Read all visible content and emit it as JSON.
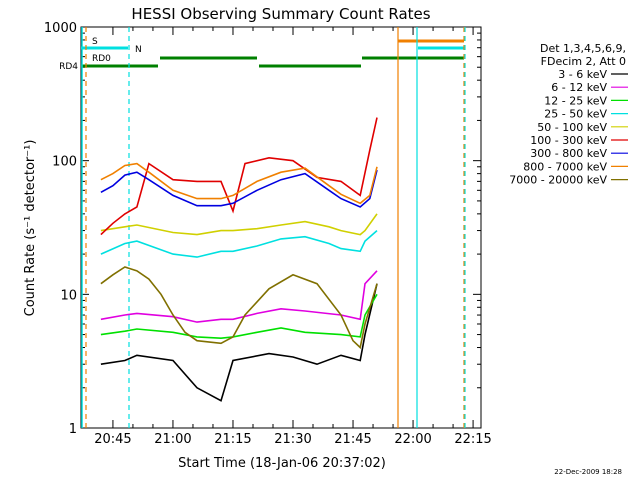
{
  "chart_data": {
    "type": "line",
    "title": "HESSI Observing Summary Count Rates",
    "xlabel": "Start Time (18-Jan-06 20:37:02)",
    "ylabel": "Count Rate (s⁻¹ detector⁻¹)",
    "y_scale": "log",
    "ylim": [
      1,
      1000
    ],
    "xlim_minutes": [
      20.617,
      22.283
    ],
    "grid": false,
    "legend_position": "right",
    "x_ticks": [
      "20:45",
      "21:00",
      "21:15",
      "21:30",
      "21:45",
      "22:00",
      "22:15"
    ],
    "y_ticks": [
      "1",
      "10",
      "100",
      "1000"
    ],
    "legend_header": [
      "Det 1,3,4,5,6,9,",
      "FDecim 2, Att 0"
    ],
    "footer_date": "22-Dec-2009 18:28",
    "flags": {
      "s_label": "S",
      "n_label": "N",
      "rd0_label": "RD0",
      "rd4_label": "RD4"
    },
    "series": [
      {
        "name": "3 - 6 keV",
        "color": "#000000",
        "x": [
          20.7,
          20.8,
          20.85,
          21.0,
          21.1,
          21.2,
          21.25,
          21.4,
          21.5,
          21.6,
          21.7,
          21.78,
          21.8,
          21.85
        ],
        "y": [
          3.0,
          3.2,
          3.5,
          3.2,
          2.0,
          1.6,
          3.2,
          3.6,
          3.4,
          3.0,
          3.5,
          3.2,
          5.0,
          12.0
        ]
      },
      {
        "name": "6 - 12 keV",
        "color": "#e000e0",
        "x": [
          20.7,
          20.8,
          20.85,
          21.0,
          21.1,
          21.2,
          21.25,
          21.35,
          21.45,
          21.55,
          21.7,
          21.78,
          21.8,
          21.85
        ],
        "y": [
          6.5,
          7.0,
          7.2,
          6.8,
          6.2,
          6.5,
          6.5,
          7.2,
          7.8,
          7.5,
          7.0,
          6.5,
          12.0,
          15.0
        ]
      },
      {
        "name": "12 - 25 keV",
        "color": "#00e000",
        "x": [
          20.7,
          20.8,
          20.85,
          21.0,
          21.1,
          21.2,
          21.25,
          21.35,
          21.45,
          21.55,
          21.7,
          21.78,
          21.8,
          21.85
        ],
        "y": [
          5.0,
          5.3,
          5.5,
          5.2,
          4.8,
          4.7,
          4.8,
          5.2,
          5.6,
          5.2,
          5.0,
          4.8,
          7.0,
          10.0
        ]
      },
      {
        "name": "25 - 50 keV",
        "color": "#00e0e0",
        "x": [
          20.7,
          20.8,
          20.85,
          21.0,
          21.1,
          21.2,
          21.25,
          21.35,
          21.45,
          21.55,
          21.65,
          21.7,
          21.78,
          21.8,
          21.85
        ],
        "y": [
          20,
          24,
          25,
          20,
          19,
          21,
          21,
          23,
          26,
          27,
          24,
          22,
          21,
          25,
          30
        ]
      },
      {
        "name": "50 - 100 keV",
        "color": "#d0d000",
        "x": [
          20.7,
          20.8,
          20.85,
          21.0,
          21.1,
          21.2,
          21.25,
          21.35,
          21.45,
          21.55,
          21.65,
          21.7,
          21.78,
          21.8,
          21.85
        ],
        "y": [
          30,
          32,
          33,
          29,
          28,
          30,
          30,
          31,
          33,
          35,
          32,
          30,
          28,
          30,
          40
        ]
      },
      {
        "name": "100 - 300 keV",
        "color": "#e00000",
        "x": [
          20.7,
          20.75,
          20.8,
          20.85,
          20.9,
          21.0,
          21.1,
          21.2,
          21.25,
          21.3,
          21.4,
          21.5,
          21.6,
          21.7,
          21.78,
          21.82,
          21.85
        ],
        "y": [
          28,
          34,
          40,
          45,
          95,
          72,
          70,
          70,
          42,
          95,
          105,
          100,
          75,
          70,
          55,
          120,
          210
        ]
      },
      {
        "name": "300 - 800 keV",
        "color": "#0000e0",
        "x": [
          20.7,
          20.75,
          20.8,
          20.85,
          20.9,
          21.0,
          21.1,
          21.2,
          21.25,
          21.35,
          21.45,
          21.55,
          21.65,
          21.7,
          21.78,
          21.82,
          21.85
        ],
        "y": [
          58,
          65,
          78,
          82,
          72,
          55,
          46,
          46,
          48,
          60,
          72,
          80,
          60,
          52,
          45,
          52,
          85
        ]
      },
      {
        "name": "800 - 7000 keV",
        "color": "#f08000",
        "x": [
          20.7,
          20.75,
          20.8,
          20.85,
          20.9,
          21.0,
          21.1,
          21.2,
          21.25,
          21.35,
          21.45,
          21.55,
          21.65,
          21.7,
          21.78,
          21.82,
          21.85
        ],
        "y": [
          72,
          80,
          92,
          95,
          82,
          60,
          52,
          52,
          55,
          70,
          82,
          88,
          65,
          56,
          48,
          55,
          90
        ]
      },
      {
        "name": "7000 - 20000 keV",
        "color": "#807000",
        "x": [
          20.7,
          20.75,
          20.8,
          20.85,
          20.9,
          20.95,
          21.0,
          21.05,
          21.1,
          21.2,
          21.25,
          21.3,
          21.4,
          21.5,
          21.6,
          21.7,
          21.75,
          21.78,
          21.8,
          21.85
        ],
        "y": [
          12,
          14,
          16,
          15,
          13,
          10,
          7,
          5.2,
          4.5,
          4.3,
          4.8,
          7,
          11,
          14,
          12,
          7,
          4.5,
          4.0,
          6.0,
          12.0
        ]
      }
    ]
  }
}
